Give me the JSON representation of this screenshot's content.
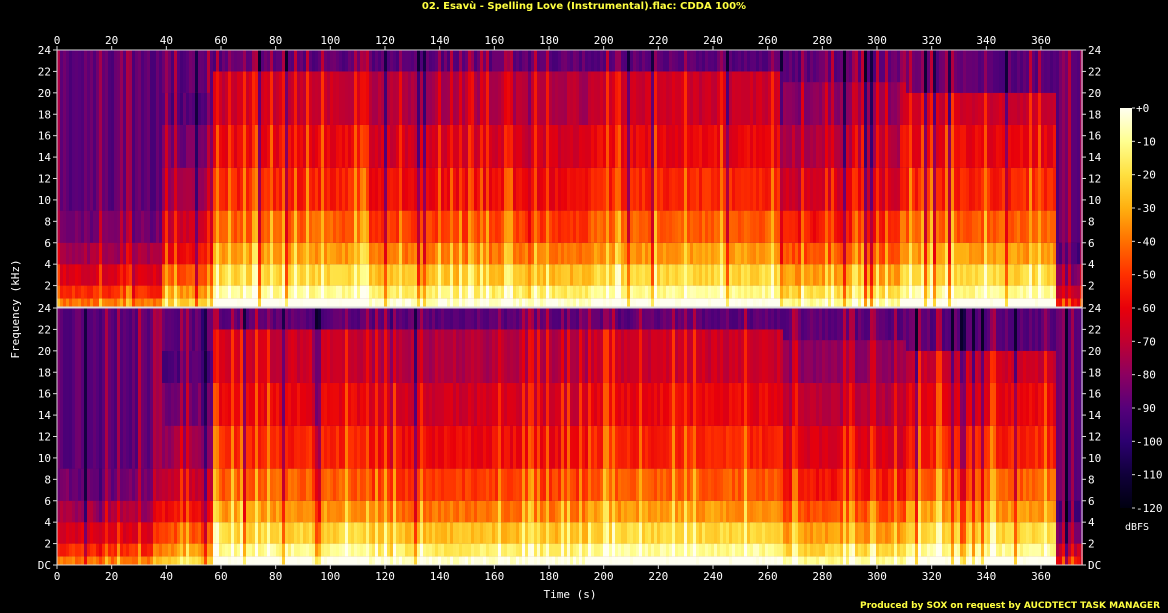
{
  "window": {
    "title": "02. Esavù - Spelling Love (Instrumental).flac: CDDA 100%",
    "credit": "Produced by SOX on request by AUCDTECT TASK MANAGER"
  },
  "chart_data": {
    "type": "heatmap",
    "xlabel": "Time (s)",
    "ylabel": "Frequency (kHz)",
    "xlim": [
      0,
      375
    ],
    "ylim": [
      0,
      24
    ],
    "x_ticks": [
      0,
      20,
      40,
      60,
      80,
      100,
      120,
      140,
      160,
      180,
      200,
      220,
      240,
      260,
      280,
      300,
      320,
      340,
      360
    ],
    "y_ticks_top": [
      "2",
      "4",
      "6",
      "8",
      "10",
      "12",
      "14",
      "16",
      "18",
      "20",
      "22",
      "24"
    ],
    "y_ticks_bottom": [
      "DC",
      "2",
      "4",
      "6",
      "8",
      "10",
      "12",
      "14",
      "16",
      "18",
      "20",
      "22",
      "24"
    ],
    "y_tick_values": [
      0,
      2,
      4,
      6,
      8,
      10,
      12,
      14,
      16,
      18,
      20,
      22,
      24
    ],
    "channels": 2,
    "colorbar": {
      "unit": "dBFS",
      "ticks": [
        "+0",
        "-10",
        "-20",
        "-30",
        "-40",
        "-50",
        "-60",
        "-70",
        "-80",
        "-90",
        "-100",
        "-110",
        "-120"
      ],
      "tick_values": [
        0,
        -10,
        -20,
        -30,
        -40,
        -50,
        -60,
        -70,
        -80,
        -90,
        -100,
        -110,
        -120
      ],
      "colors": [
        "#fffff0",
        "#ffff90",
        "#ffe040",
        "#ffb010",
        "#ff7000",
        "#ff3000",
        "#e8000a",
        "#c00030",
        "#8c0060",
        "#56007a",
        "#2c0070",
        "#10003a",
        "#000010"
      ]
    },
    "segments": [
      {
        "start": 0,
        "end": 38,
        "low_band_level": 0.55,
        "high_cut_khz": 9
      },
      {
        "start": 38,
        "end": 56,
        "low_band_level": 0.7,
        "high_cut_khz": 20
      },
      {
        "start": 56,
        "end": 112,
        "low_band_level": 0.9,
        "high_cut_khz": 22
      },
      {
        "start": 112,
        "end": 195,
        "low_band_level": 0.85,
        "high_cut_khz": 22
      },
      {
        "start": 195,
        "end": 265,
        "low_band_level": 0.9,
        "high_cut_khz": 22
      },
      {
        "start": 265,
        "end": 310,
        "low_band_level": 0.8,
        "high_cut_khz": 21
      },
      {
        "start": 310,
        "end": 365,
        "low_band_level": 0.9,
        "high_cut_khz": 20
      },
      {
        "start": 365,
        "end": 375,
        "low_band_level": 0.4,
        "high_cut_khz": 6
      }
    ]
  }
}
